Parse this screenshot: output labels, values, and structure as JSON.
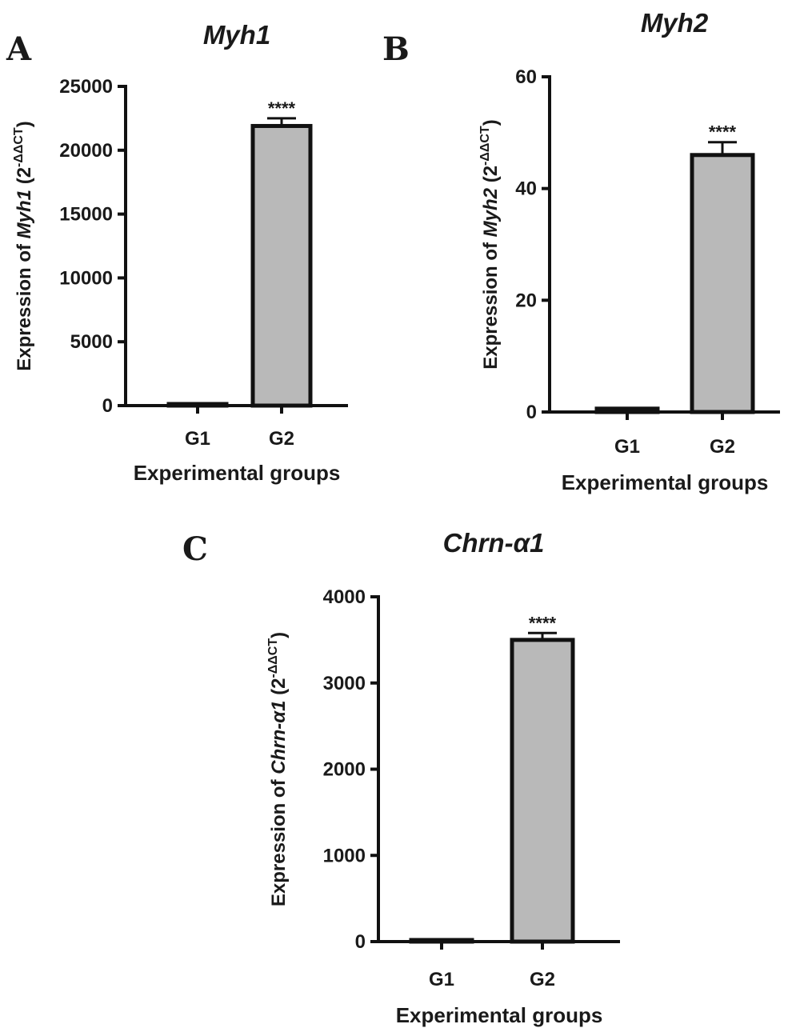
{
  "colors": {
    "bar_fill": "#b9b9b9",
    "axis": "#111111",
    "background": "#ffffff"
  },
  "chart_data": [
    {
      "type": "bar",
      "panel": "A",
      "title": "Myh1",
      "xlabel": "Experimental groups",
      "ylabel": {
        "prefix": "Expression of ",
        "gene": "Myh1",
        "suffix": " (2",
        "exp": "-ΔΔCT",
        "close": ")"
      },
      "categories": [
        "G1",
        "G2"
      ],
      "values": [
        0,
        21900
      ],
      "errors": [
        0,
        600
      ],
      "significance": [
        "",
        "****"
      ],
      "ylim": [
        0,
        25000
      ],
      "yticks": [
        0,
        5000,
        10000,
        15000,
        20000,
        25000
      ],
      "ytick_labels": [
        "0",
        "5000",
        "10000",
        "15000",
        "20000",
        "25000"
      ]
    },
    {
      "type": "bar",
      "panel": "B",
      "title": "Myh2",
      "xlabel": "Experimental groups",
      "ylabel": {
        "prefix": "Expression of ",
        "gene": "Myh2",
        "suffix": " (2",
        "exp": "-ΔΔCT",
        "close": ")"
      },
      "categories": [
        "G1",
        "G2"
      ],
      "values": [
        0.6,
        46
      ],
      "errors": [
        0.1,
        2.3
      ],
      "significance": [
        "",
        "****"
      ],
      "ylim": [
        0,
        60
      ],
      "yticks": [
        0,
        20,
        40,
        60
      ],
      "ytick_labels": [
        "0",
        "20",
        "40",
        "60"
      ]
    },
    {
      "type": "bar",
      "panel": "C",
      "title": "Chrn-α1",
      "xlabel": "Experimental groups",
      "ylabel": {
        "prefix": "Expression of ",
        "gene": "Chrn-α1",
        "suffix": " (2",
        "exp": "-ΔΔCT",
        "close": ")"
      },
      "categories": [
        "G1",
        "G2"
      ],
      "values": [
        0,
        3500
      ],
      "errors": [
        0,
        80
      ],
      "significance": [
        "",
        "****"
      ],
      "ylim": [
        0,
        4000
      ],
      "yticks": [
        0,
        1000,
        2000,
        3000,
        4000
      ],
      "ytick_labels": [
        "0",
        "1000",
        "2000",
        "3000",
        "4000"
      ]
    }
  ]
}
